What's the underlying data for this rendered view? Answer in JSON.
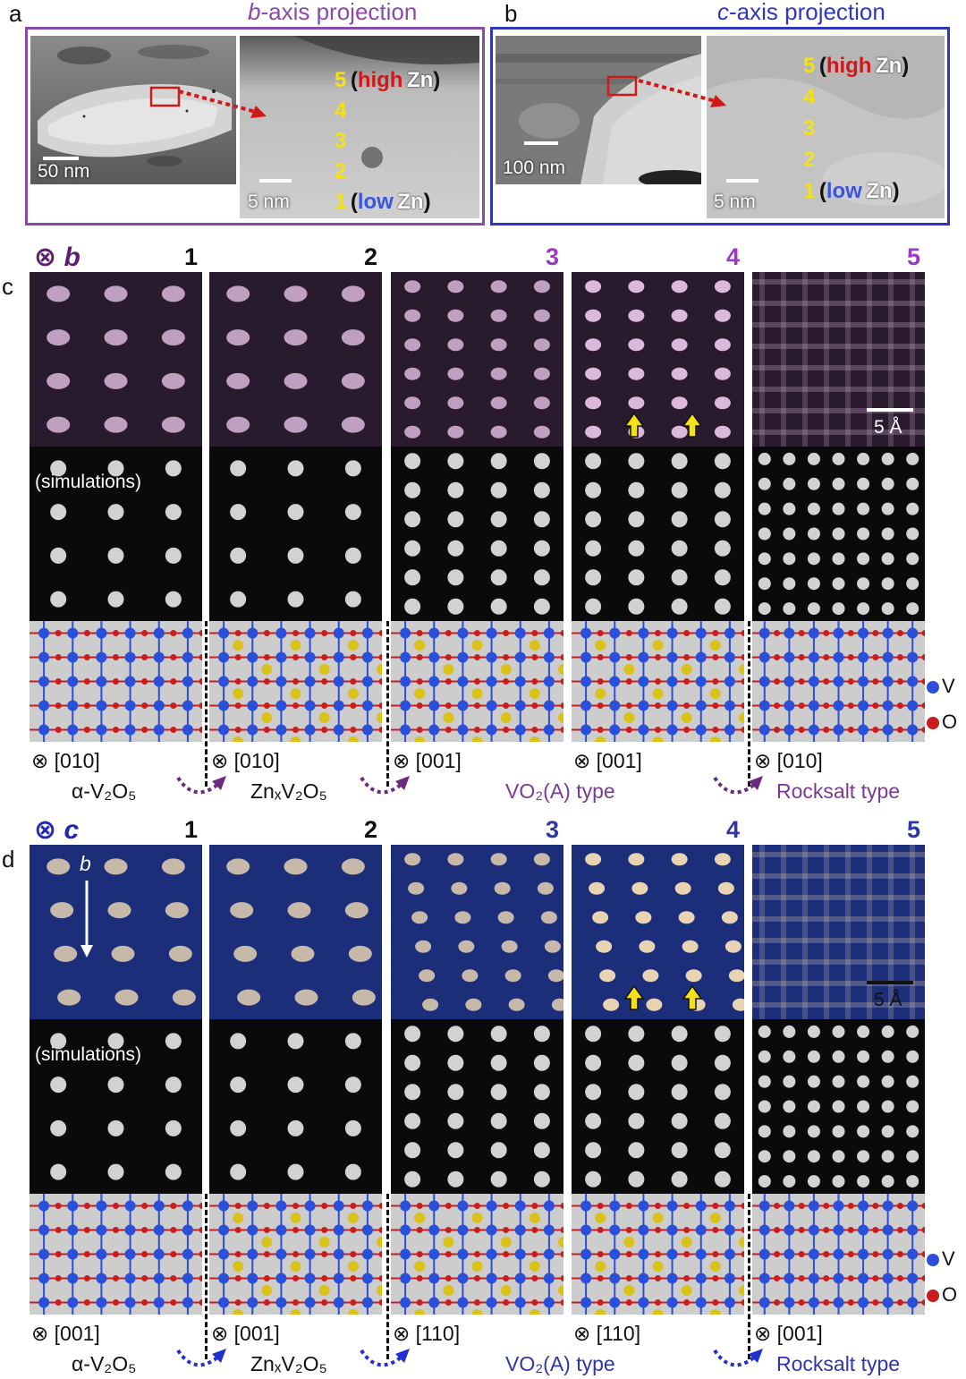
{
  "panel_a": {
    "letter": "a",
    "title_axis": "b",
    "title_rest": "-axis projection",
    "left_scale": "50 nm",
    "right_scale": "5 nm"
  },
  "panel_b": {
    "letter": "b",
    "title_axis": "c",
    "title_rest": "-axis projection",
    "left_scale": "100 nm",
    "right_scale": "5 nm"
  },
  "zn_labels": {
    "levels": [
      "5",
      "4",
      "3",
      "2",
      "1"
    ],
    "open": "(",
    "close": ")",
    "high": "high",
    "low": "low",
    "zn": "Zn"
  },
  "panel_c": {
    "letter": "c",
    "axis_symbol": "⊗",
    "axis": "b",
    "numbers": [
      "1",
      "2",
      "3",
      "4",
      "5"
    ],
    "scale": "5 Å",
    "sim_caption": "(simulations)",
    "zone_axes": [
      "⊗ [010]",
      "⊗ [010]",
      "⊗ [001]",
      "⊗ [001]",
      "⊗ [010]"
    ],
    "phases": [
      "α-V₂O₅",
      "ZnₓV₂O₅",
      "VO₂(A) type",
      "Rocksalt type"
    ]
  },
  "panel_d": {
    "letter": "d",
    "axis_symbol": "⊗",
    "axis": "c",
    "numbers": [
      "1",
      "2",
      "3",
      "4",
      "5"
    ],
    "scale": "5 Å",
    "sim_caption": "(simulations)",
    "b_arrow_label": "b",
    "zone_axes": [
      "⊗ [001]",
      "⊗ [001]",
      "⊗ [110]",
      "⊗ [110]",
      "⊗ [001]"
    ],
    "phases": [
      "α-V₂O₅",
      "ZnₓV₂O₅",
      "VO₂(A) type",
      "Rocksalt type"
    ]
  },
  "legend": {
    "v": "V",
    "o": "O"
  },
  "colors": {
    "purple": "#7a3b96",
    "purple_dark": "#5b1f6e",
    "blue": "#2f36a8",
    "blue_dark": "#1f2ab0",
    "yellow": "#f4e11a",
    "red": "#d01818",
    "v_atom": "#2a4fd8",
    "o_atom": "#c81e1e",
    "zn_atom": "#d9c21a"
  }
}
